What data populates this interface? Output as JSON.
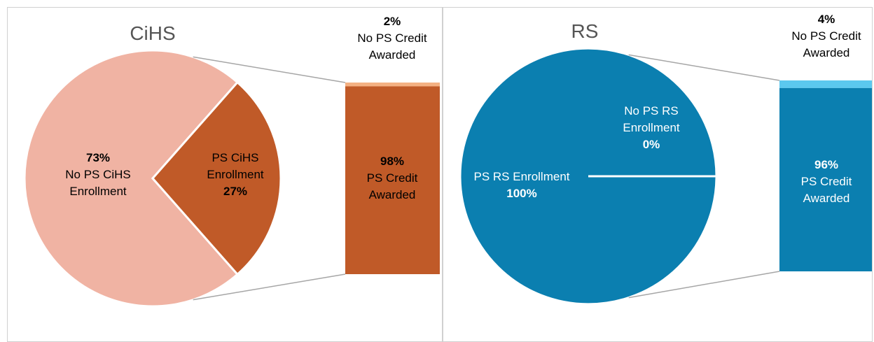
{
  "chart_data": [
    {
      "type": "pie-of-bar",
      "title": "CiHS",
      "pie": {
        "labels": [
          "No PS CiHS Enrollment",
          "PS CiHS Enrollment"
        ],
        "values": [
          73,
          27
        ],
        "value_labels": [
          "73%",
          "27%"
        ],
        "colors": [
          "#f0b3a3",
          "#c05a28"
        ]
      },
      "bar": {
        "labels": [
          "No PS Credit Awarded",
          "PS Credit Awarded"
        ],
        "values": [
          2,
          98
        ],
        "value_labels": [
          "2%",
          "98%"
        ],
        "colors": [
          "#f4b183",
          "#c05a28"
        ]
      }
    },
    {
      "type": "pie-of-bar",
      "title": "RS",
      "pie": {
        "labels": [
          "PS RS Enrollment",
          "No PS RS Enrollment"
        ],
        "values": [
          100,
          0
        ],
        "value_labels": [
          "100%",
          "0%"
        ],
        "colors": [
          "#0b7fb0",
          "#0b7fb0"
        ]
      },
      "bar": {
        "labels": [
          "No PS Credit Awarded",
          "PS Credit Awarded"
        ],
        "values": [
          4,
          96
        ],
        "value_labels": [
          "4%",
          "96%"
        ],
        "colors": [
          "#5bc8ef",
          "#0b7fb0"
        ]
      }
    }
  ]
}
